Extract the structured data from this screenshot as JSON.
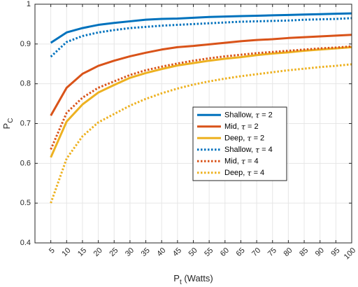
{
  "chart_data": {
    "type": "line",
    "xlabel": "Watts",
    "ylabel": "",
    "x_axis_symbol": "P",
    "x_axis_subscript": "t",
    "x_axis_unit": "(Watts)",
    "y_axis_symbol": "P",
    "y_axis_subscript": "C",
    "xlim": [
      0,
      100
    ],
    "ylim": [
      0.4,
      1.0
    ],
    "grid": true,
    "legend_position": "center-right",
    "x_ticks": [
      5,
      10,
      15,
      20,
      25,
      30,
      35,
      40,
      45,
      50,
      55,
      60,
      65,
      70,
      75,
      80,
      85,
      90,
      95,
      100
    ],
    "y_ticks": [
      0.4,
      0.5,
      0.6,
      0.7,
      0.8,
      0.9,
      1
    ],
    "x": [
      5,
      10,
      15,
      20,
      25,
      30,
      35,
      40,
      45,
      50,
      55,
      60,
      65,
      70,
      75,
      80,
      85,
      90,
      95,
      100
    ],
    "series": [
      {
        "name_prefix": "Shallow, ",
        "name_symbol": "τ",
        "name_suffix": " = 2",
        "color": "#0072BD",
        "style": "solid",
        "values": [
          0.903,
          0.929,
          0.94,
          0.948,
          0.953,
          0.957,
          0.961,
          0.963,
          0.964,
          0.966,
          0.968,
          0.969,
          0.97,
          0.971,
          0.972,
          0.973,
          0.974,
          0.975,
          0.976,
          0.977
        ]
      },
      {
        "name_prefix": "Mid, ",
        "name_symbol": "τ",
        "name_suffix": " = 2",
        "color": "#D95319",
        "style": "solid",
        "values": [
          0.72,
          0.79,
          0.825,
          0.845,
          0.858,
          0.869,
          0.878,
          0.886,
          0.892,
          0.895,
          0.899,
          0.903,
          0.907,
          0.91,
          0.912,
          0.915,
          0.917,
          0.919,
          0.921,
          0.923
        ]
      },
      {
        "name_prefix": "Deep, ",
        "name_symbol": "τ",
        "name_suffix": " = 2",
        "color": "#EDB120",
        "style": "solid",
        "values": [
          0.615,
          0.705,
          0.748,
          0.778,
          0.797,
          0.815,
          0.827,
          0.837,
          0.846,
          0.852,
          0.858,
          0.863,
          0.867,
          0.872,
          0.876,
          0.879,
          0.883,
          0.886,
          0.889,
          0.892
        ]
      },
      {
        "name_prefix": "Shallow, ",
        "name_symbol": "τ",
        "name_suffix": " = 4",
        "color": "#0072BD",
        "style": "dotted",
        "values": [
          0.868,
          0.905,
          0.92,
          0.929,
          0.935,
          0.94,
          0.943,
          0.946,
          0.948,
          0.95,
          0.952,
          0.954,
          0.956,
          0.957,
          0.958,
          0.959,
          0.961,
          0.962,
          0.963,
          0.965
        ]
      },
      {
        "name_prefix": "Mid, ",
        "name_symbol": "τ",
        "name_suffix": " = 4",
        "color": "#D95319",
        "style": "dotted",
        "values": [
          0.635,
          0.727,
          0.765,
          0.79,
          0.806,
          0.822,
          0.834,
          0.843,
          0.851,
          0.858,
          0.864,
          0.869,
          0.873,
          0.877,
          0.88,
          0.883,
          0.886,
          0.889,
          0.891,
          0.894
        ]
      },
      {
        "name_prefix": "Deep, ",
        "name_symbol": "τ",
        "name_suffix": " = 4",
        "color": "#EDB120",
        "style": "dotted",
        "values": [
          0.5,
          0.612,
          0.668,
          0.703,
          0.724,
          0.745,
          0.762,
          0.776,
          0.788,
          0.798,
          0.806,
          0.813,
          0.819,
          0.824,
          0.829,
          0.834,
          0.838,
          0.842,
          0.845,
          0.849
        ]
      }
    ]
  }
}
